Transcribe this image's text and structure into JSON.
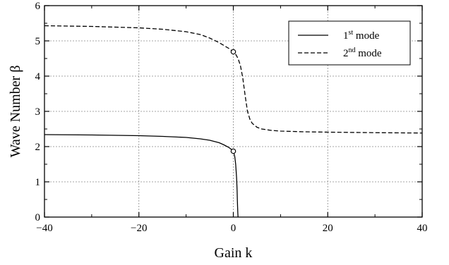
{
  "chart_data": {
    "type": "line",
    "xlabel": "Gain k",
    "ylabel": "Wave Number β",
    "xlim": [
      -40,
      40
    ],
    "ylim": [
      0,
      6
    ],
    "xticks": [
      -40,
      -20,
      0,
      20,
      40
    ],
    "yticks": [
      0,
      1,
      2,
      3,
      4,
      5,
      6
    ],
    "xtick_labels": [
      "−40",
      "−20",
      "0",
      "20",
      "40"
    ],
    "ytick_labels": [
      "0",
      "1",
      "2",
      "3",
      "4",
      "5",
      "6"
    ],
    "grid": true,
    "legend": {
      "position": "top-right",
      "entries": [
        {
          "prefix": "1",
          "sup": "st",
          "suffix": " mode"
        },
        {
          "prefix": "2",
          "sup": "nd",
          "suffix": " mode"
        }
      ]
    },
    "series": [
      {
        "line_style": "solid",
        "color": "#000000",
        "x": [
          -40,
          -35,
          -30,
          -25,
          -20,
          -15,
          -10,
          -7,
          -5,
          -3,
          -2,
          -1,
          -0.5,
          0,
          0.3,
          0.5,
          0.7,
          0.8,
          0.85,
          0.9,
          0.95,
          1.0
        ],
        "y": [
          2.34,
          2.335,
          2.33,
          2.32,
          2.31,
          2.29,
          2.26,
          2.22,
          2.18,
          2.11,
          2.05,
          1.98,
          1.93,
          1.87,
          1.72,
          1.5,
          1.1,
          0.75,
          0.5,
          0.3,
          0.12,
          0
        ]
      },
      {
        "line_style": "dashed",
        "color": "#000000",
        "x": [
          -40,
          -30,
          -20,
          -15,
          -10,
          -7,
          -5,
          -3,
          -2,
          -1,
          0,
          0.5,
          1,
          1.5,
          2,
          2.5,
          3,
          3.5,
          4,
          5,
          6,
          8,
          10,
          15,
          20,
          30,
          40
        ],
        "y": [
          5.43,
          5.41,
          5.37,
          5.33,
          5.26,
          5.18,
          5.08,
          4.95,
          4.87,
          4.79,
          4.69,
          4.62,
          4.5,
          4.3,
          3.95,
          3.45,
          3.0,
          2.78,
          2.66,
          2.55,
          2.5,
          2.46,
          2.44,
          2.42,
          2.41,
          2.395,
          2.385
        ]
      }
    ],
    "markers": [
      {
        "x": 0,
        "y": 1.87,
        "shape": "open-circle"
      },
      {
        "x": 0,
        "y": 4.69,
        "shape": "open-circle"
      }
    ]
  }
}
